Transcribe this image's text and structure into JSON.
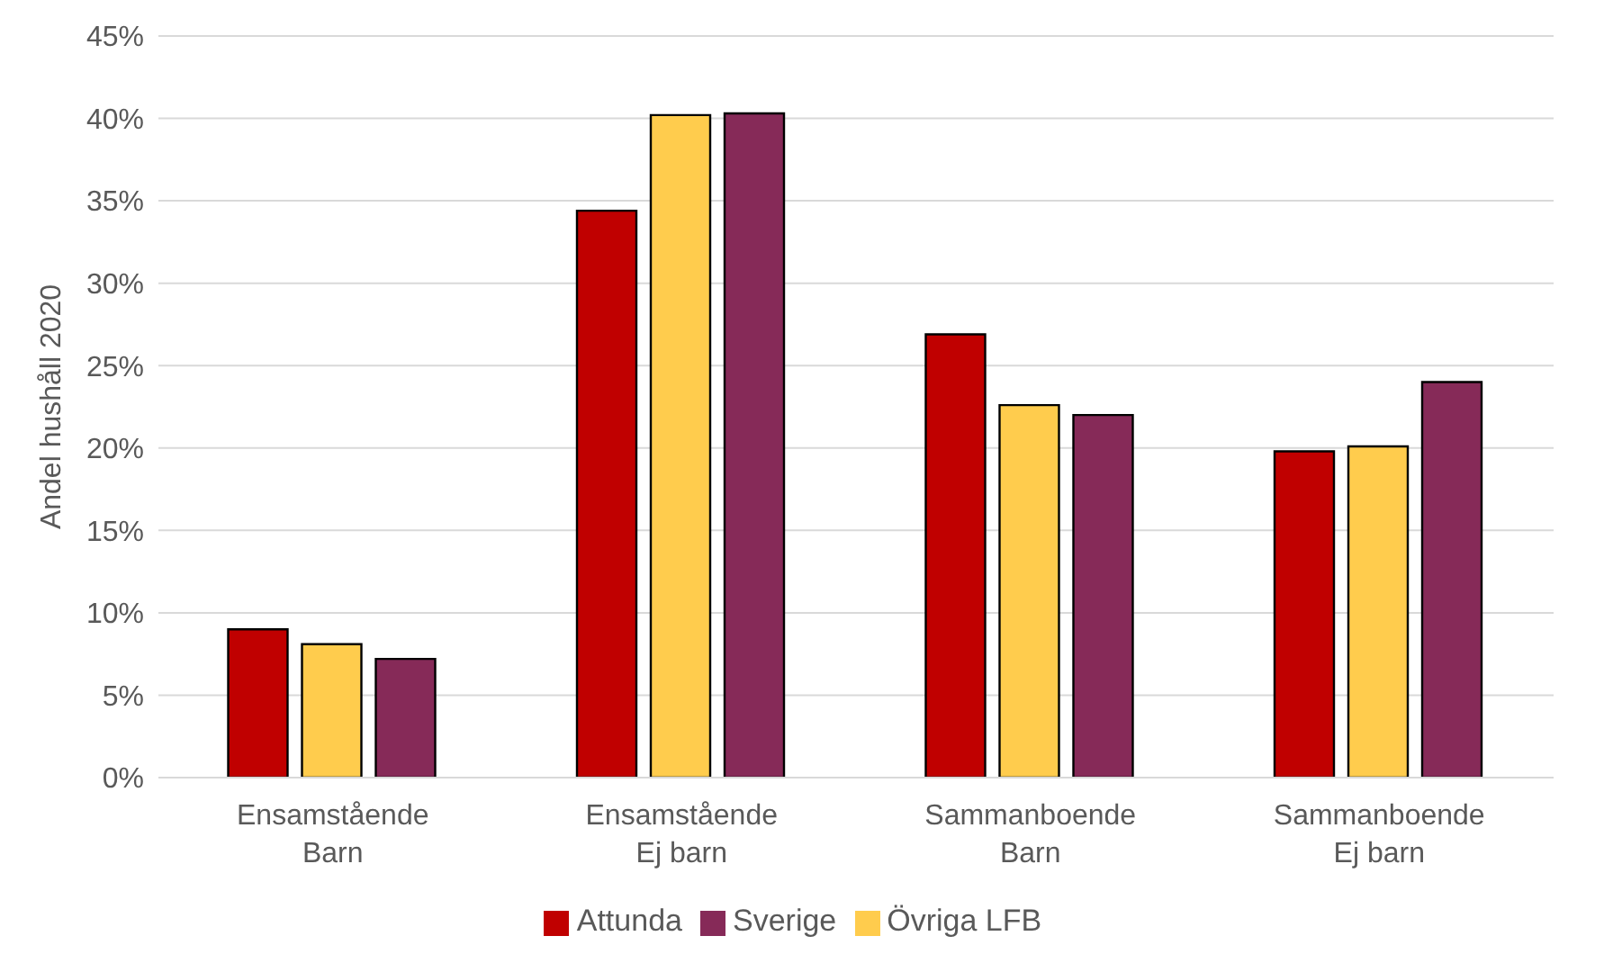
{
  "chart_data": {
    "type": "bar",
    "ylabel": "Andel hushåll 2020",
    "categories": [
      "Ensamstående\nBarn",
      "Ensamstående\nEj barn",
      "Sammanboende\nBarn",
      "Sammanboende\nEj barn"
    ],
    "series": [
      {
        "name": "Attunda",
        "color": "#c00000",
        "values": [
          9.0,
          34.4,
          26.9,
          19.8
        ]
      },
      {
        "name": "Övriga LFB",
        "color": "#ffcc4d",
        "values": [
          8.1,
          40.2,
          22.6,
          20.1
        ]
      },
      {
        "name": "Sverige",
        "color": "#862a58",
        "values": [
          7.2,
          40.3,
          22.0,
          24.0
        ]
      }
    ],
    "ylim": [
      0,
      45
    ],
    "yticks": [
      {
        "value": 0,
        "label": "0%"
      },
      {
        "value": 5,
        "label": "5%"
      },
      {
        "value": 10,
        "label": "10%"
      },
      {
        "value": 15,
        "label": "15%"
      },
      {
        "value": 20,
        "label": "20%"
      },
      {
        "value": 25,
        "label": "25%"
      },
      {
        "value": 30,
        "label": "30%"
      },
      {
        "value": 35,
        "label": "35%"
      },
      {
        "value": 40,
        "label": "40%"
      },
      {
        "value": 45,
        "label": "45%"
      }
    ],
    "grid": "y",
    "legend": "bottom"
  }
}
